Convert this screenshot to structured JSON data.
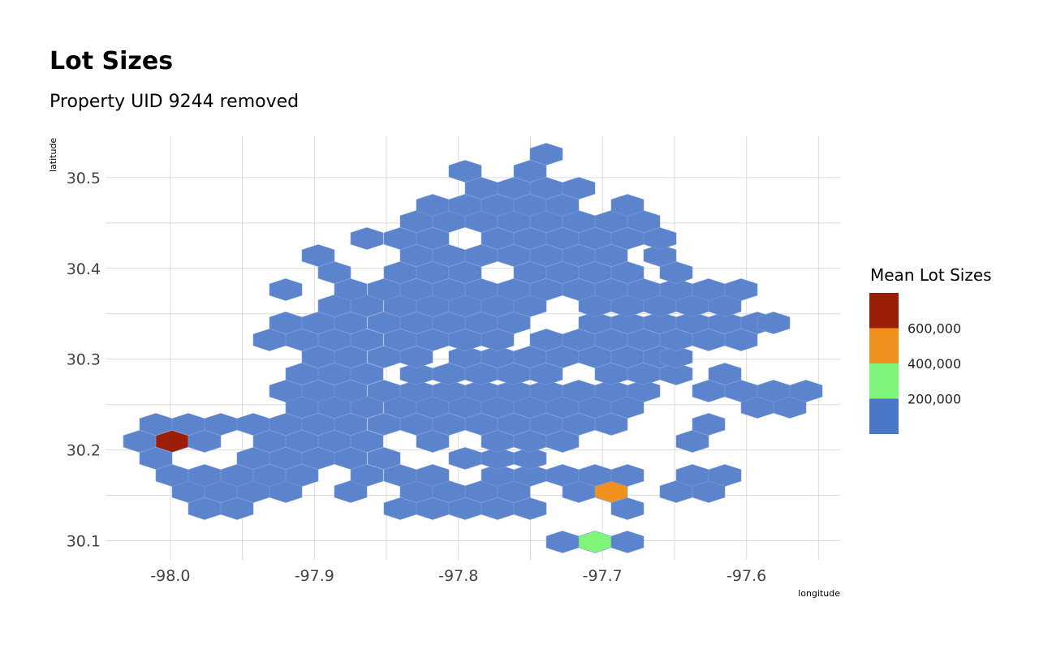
{
  "chart_data": {
    "type": "heatmap",
    "subtype": "hexbin",
    "title": "Lot Sizes",
    "subtitle": "Property UID 9244 removed",
    "xlabel": "longitude",
    "ylabel": "latitude",
    "xlim": [
      -98.045,
      -97.535
    ],
    "ylim": [
      30.079,
      30.5455
    ],
    "x_ticks": [
      -98.0,
      -97.9,
      -97.8,
      -97.7,
      -97.6
    ],
    "x_tick_labels": [
      "-98.0",
      "-97.9",
      "-97.8",
      "-97.7",
      "-97.6"
    ],
    "y_ticks": [
      30.1,
      30.2,
      30.3,
      30.4,
      30.5
    ],
    "y_tick_labels": [
      "30.1",
      "30.2",
      "30.3",
      "30.4",
      "30.5"
    ],
    "grid": true,
    "legend": {
      "title": "Mean Lot Sizes",
      "position": "right",
      "labels": [
        "600,000",
        "400,000",
        "200,000"
      ],
      "colors": [
        "#9b1f07",
        "#f0901e",
        "#7ff57a",
        "#4a77c8"
      ]
    },
    "hex_geometry": {
      "col_spacing": 0.02245,
      "row_spacing": 0.01867,
      "origin_x": -98.0337,
      "origin_y": 30.1016
    },
    "default_color": "#5b84cc",
    "rows": [
      {
        "r": 0,
        "cols": [
          12,
          13,
          14
        ]
      },
      {
        "r": 1,
        "cols": [
          7.5,
          8.5,
          9.5,
          10.5,
          11.5,
          13.5
        ]
      },
      {
        "r": 2,
        "cols": [
          1,
          2,
          3,
          8,
          9,
          10,
          11,
          12,
          13,
          14,
          15,
          16,
          17,
          18
        ]
      },
      {
        "r": 3,
        "cols": [
          0.5,
          1.5,
          2.5,
          3.5,
          4.5,
          5.5,
          6.5,
          7.5,
          10.5,
          11.5,
          12.5,
          13.5,
          14.5,
          16.5,
          18.5,
          19.5
        ]
      },
      {
        "r": 4,
        "cols": [
          0,
          1,
          2,
          3,
          4,
          5,
          6,
          7,
          8,
          9,
          10,
          11,
          12,
          14,
          15,
          18,
          19,
          20
        ]
      },
      {
        "r": 5,
        "cols": [
          0.5,
          1.5,
          2.5,
          3.5,
          4.5,
          5.5,
          6.5,
          7.5,
          8.5,
          9.5,
          10.5,
          11.5,
          12.5,
          13.5,
          14.5,
          15.5,
          16.5,
          19.5,
          20.5
        ]
      },
      {
        "r": 6,
        "cols": [
          0,
          1,
          2,
          3,
          4,
          5,
          6,
          7,
          8,
          9,
          10,
          11,
          12,
          13,
          14,
          15,
          16,
          17,
          20,
          21
        ]
      },
      {
        "r": 7,
        "cols": [
          0.5,
          1.5,
          2.5,
          3.5,
          4.5,
          5.5,
          6.5,
          7.5,
          8.5,
          9.5,
          10.5,
          11.5,
          12.5,
          13.5,
          14.5,
          15.5,
          16.5,
          17.5,
          18.5,
          19.5,
          20.5,
          21.5,
          22.5,
          23.5
        ]
      },
      {
        "r": 8,
        "cols": [
          0,
          1,
          2,
          3,
          4,
          5,
          6,
          7,
          8,
          9,
          10,
          11,
          12,
          13,
          14,
          15,
          16,
          17,
          18,
          19,
          20,
          21,
          22,
          23
        ]
      },
      {
        "r": 9,
        "cols": [
          0.5,
          1.5,
          2.5,
          3.5,
          4.5,
          5.5,
          6.5,
          7.5,
          8.5,
          9.5,
          10.5,
          11.5,
          12.5,
          13.5,
          14.5,
          15.5,
          16.5,
          17.5,
          18.5,
          19.5,
          20.5,
          21.5,
          22.5,
          23.5
        ]
      },
      {
        "r": 10,
        "cols": [
          0,
          1,
          2,
          3,
          4,
          5,
          6,
          7,
          8,
          9,
          10,
          11,
          12,
          13,
          14,
          15,
          16,
          17,
          18,
          19,
          20,
          21,
          22,
          23
        ]
      },
      {
        "r": 11,
        "cols": [
          0.5,
          1.5,
          2.5,
          3.5,
          4.5,
          5.5,
          6.5,
          7.5,
          8.5,
          9.5,
          10.5,
          11.5,
          12.5,
          13.5,
          14.5,
          15.5,
          16.5,
          17.5,
          18.5,
          19.5,
          20.5,
          21.5,
          22.5,
          23.5
        ]
      },
      {
        "r": 12,
        "cols": [
          0,
          1,
          2,
          3,
          4,
          5,
          6,
          7,
          8,
          9,
          10,
          11,
          12,
          13,
          14,
          15,
          16,
          17,
          18,
          19,
          20,
          21,
          22,
          23
        ]
      },
      {
        "r": 13,
        "cols": [
          0.5,
          1.5,
          2.5,
          3.5,
          4.5,
          5.5,
          6.5,
          7.5,
          8.5,
          9.5,
          10.5,
          11.5,
          12.5,
          13.5,
          14.5,
          15.5,
          16.5,
          17.5,
          18.5,
          19.5,
          20.5,
          21.5,
          22.5,
          23.5
        ]
      },
      {
        "r": 14,
        "cols": [
          0,
          1,
          2,
          3,
          4,
          5,
          6,
          7,
          8,
          9,
          10,
          11,
          12,
          13,
          14,
          15,
          16,
          17,
          18,
          19,
          20,
          21,
          22,
          23
        ]
      },
      {
        "r": 15,
        "cols": [
          0.5,
          1.5,
          2.5,
          3.5,
          4.5,
          5.5,
          6.5,
          7.5,
          8.5,
          9.5,
          10.5,
          11.5,
          12.5,
          13.5,
          14.5,
          15.5,
          16.5,
          17.5,
          18.5,
          19.5,
          20.5,
          21.5,
          22.5,
          23.5
        ]
      },
      {
        "r": 16,
        "cols": [
          0,
          1,
          2,
          3,
          4,
          5,
          6,
          7,
          8,
          9,
          10,
          11,
          12,
          13,
          14,
          15,
          16,
          17,
          18,
          19,
          20,
          21,
          22,
          23
        ]
      },
      {
        "r": 17,
        "cols": [
          0.5,
          1.5,
          2.5,
          3.5,
          4.5,
          5.5,
          6.5,
          7.5,
          8.5,
          9.5,
          10.5,
          11.5,
          12.5,
          13.5,
          14.5,
          15.5,
          16.5,
          17.5,
          18.5,
          19.5,
          20.5,
          21.5,
          22.5,
          23.5
        ]
      },
      {
        "r": 18,
        "cols": [
          0,
          1,
          2,
          3,
          4,
          5,
          6,
          7,
          8,
          9,
          10,
          11,
          12,
          13,
          14,
          15,
          16,
          17,
          18,
          19,
          20,
          21,
          22,
          23
        ]
      },
      {
        "r": 19,
        "cols": [
          0.5,
          1.5,
          2.5,
          3.5,
          4.5,
          5.5,
          6.5,
          7.5,
          8.5,
          9.5,
          10.5,
          11.5,
          12.5,
          13.5,
          14.5,
          15.5,
          16.5,
          17.5,
          18.5,
          19.5,
          20.5,
          21.5,
          22.5,
          23.5
        ]
      },
      {
        "r": 20,
        "cols": [
          0,
          1,
          2,
          3,
          4,
          5,
          6,
          7,
          8,
          9,
          10,
          11,
          12,
          13,
          14,
          15,
          16,
          17,
          18,
          19,
          20,
          21,
          22,
          23
        ]
      },
      {
        "r": 21,
        "cols": [
          0.5,
          1.5,
          2.5,
          3.5,
          4.5,
          5.5,
          6.5,
          7.5,
          8.5,
          9.5,
          10.5,
          11.5,
          12.5,
          13.5,
          14.5,
          15.5,
          16.5,
          17.5,
          18.5,
          19.5,
          20.5,
          21.5,
          22.5,
          23.5
        ]
      },
      {
        "r": 22,
        "cols": [
          0,
          1,
          2,
          3,
          4,
          5,
          6,
          7,
          8,
          9,
          10,
          11,
          12,
          13,
          14,
          15,
          16,
          17,
          18,
          19,
          20,
          21,
          22,
          23
        ]
      },
      {
        "r": 23,
        "cols": [
          0.5,
          1.5,
          2.5,
          3.5,
          4.5,
          5.5,
          6.5,
          7.5,
          8.5,
          9.5,
          10.5,
          11.5,
          12.5,
          13.5,
          14.5,
          15.5,
          16.5,
          17.5,
          18.5,
          19.5,
          20.5,
          21.5,
          22.5,
          23.5
        ]
      }
    ],
    "colored_cells": [
      {
        "r": 10,
        "c": 0,
        "color": "#9b1f07"
      },
      {
        "r": 2,
        "c": 12,
        "color": "#f0901e"
      },
      {
        "r": 0,
        "c": 13,
        "color": "#7ff57a"
      }
    ]
  }
}
